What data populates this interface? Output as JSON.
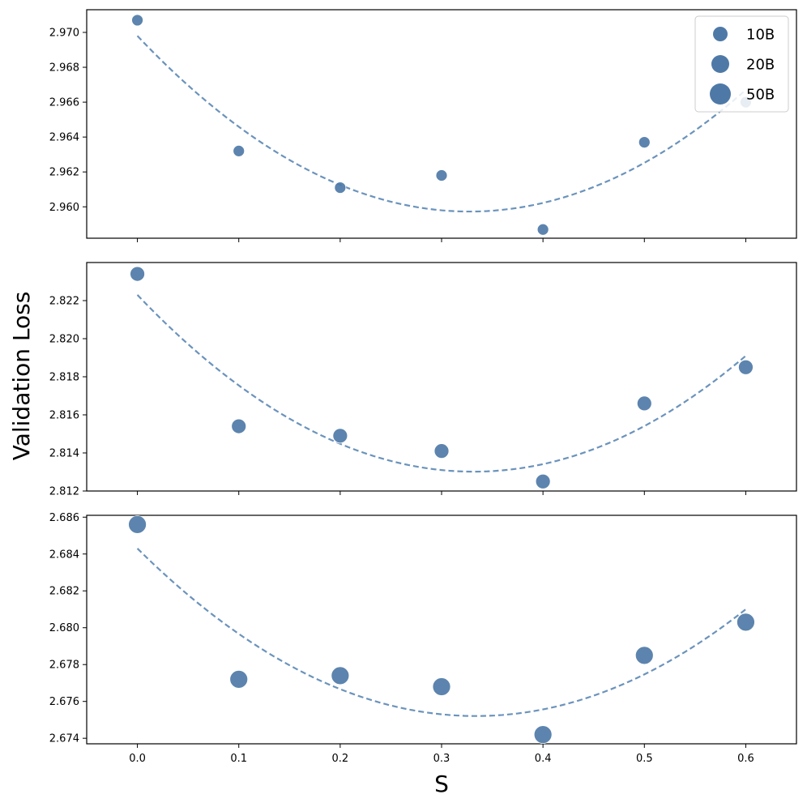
{
  "chart_data": {
    "type": "scatter",
    "xlabel": "S",
    "ylabel": "Validation Loss",
    "x_ticks": [
      "0.0",
      "0.1",
      "0.2",
      "0.3",
      "0.4",
      "0.5",
      "0.6"
    ],
    "xlim": [
      -0.05,
      0.65
    ],
    "colors": {
      "marker": "#4e79a7",
      "fit_line": "#6b93bc"
    },
    "legend": {
      "placement": "top-right",
      "entries": [
        {
          "label": "10B",
          "series": "10B"
        },
        {
          "label": "20B",
          "series": "20B"
        },
        {
          "label": "50B",
          "series": "50B"
        }
      ]
    },
    "panels": [
      {
        "series": "10B",
        "ylim": [
          2.9582,
          2.9713
        ],
        "y_ticks": [
          "2.960",
          "2.962",
          "2.964",
          "2.966",
          "2.968",
          "2.970"
        ],
        "x": [
          0.0,
          0.1,
          0.2,
          0.3,
          0.4,
          0.5,
          0.6
        ],
        "y": [
          2.9707,
          2.9632,
          2.9611,
          2.9618,
          2.9587,
          2.9637,
          2.966
        ],
        "fit": {
          "x_range": [
            0.0,
            0.6
          ],
          "y": [
            2.9698,
            2.9645,
            2.9612,
            2.9598,
            2.9602,
            2.9625,
            2.9667
          ]
        }
      },
      {
        "series": "20B",
        "ylim": [
          2.812,
          2.824
        ],
        "y_ticks": [
          "2.812",
          "2.814",
          "2.816",
          "2.818",
          "2.820",
          "2.822"
        ],
        "x": [
          0.0,
          0.1,
          0.2,
          0.3,
          0.4,
          0.5,
          0.6
        ],
        "y": [
          2.8234,
          2.8154,
          2.8149,
          2.8141,
          2.8125,
          2.8166,
          2.8185
        ],
        "fit": {
          "x_range": [
            0.0,
            0.6
          ],
          "y": [
            2.8223,
            2.8175,
            2.8145,
            2.8131,
            2.8134,
            2.8154,
            2.8191
          ]
        }
      },
      {
        "series": "50B",
        "ylim": [
          2.6737,
          2.6861
        ],
        "y_ticks": [
          "2.674",
          "2.676",
          "2.678",
          "2.680",
          "2.682",
          "2.684",
          "2.686"
        ],
        "x": [
          0.0,
          0.1,
          0.2,
          0.3,
          0.4,
          0.5,
          0.6
        ],
        "y": [
          2.6856,
          2.6772,
          2.6774,
          2.6768,
          2.6742,
          2.6785,
          2.6803
        ],
        "fit": {
          "x_range": [
            0.0,
            0.6
          ],
          "y": [
            2.6843,
            2.6796,
            2.6767,
            2.6753,
            2.6756,
            2.6775,
            2.681
          ]
        }
      }
    ]
  }
}
